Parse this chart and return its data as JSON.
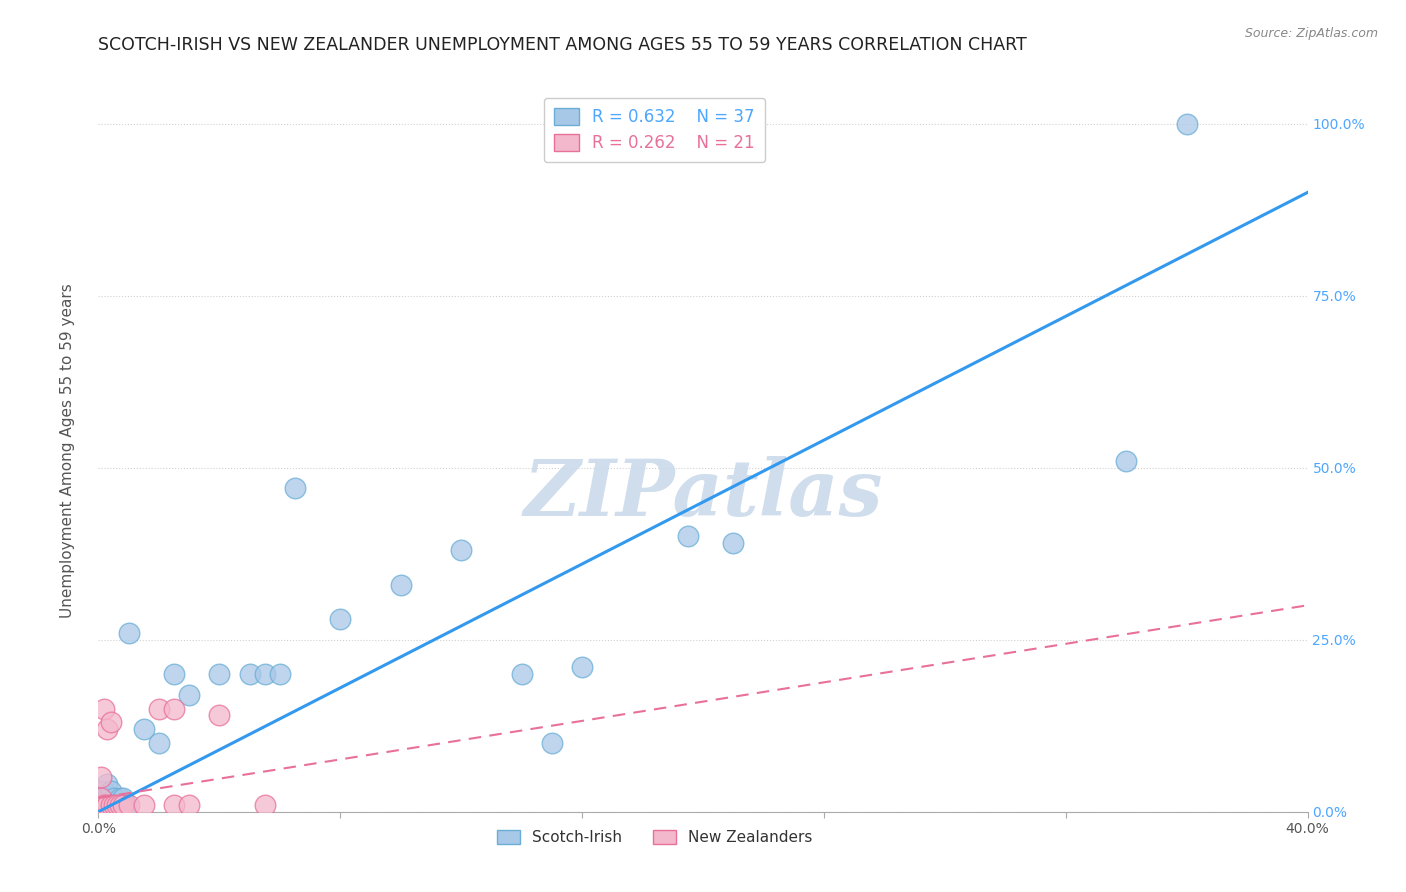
{
  "title": "SCOTCH-IRISH VS NEW ZEALANDER UNEMPLOYMENT AMONG AGES 55 TO 59 YEARS CORRELATION CHART",
  "source": "Source: ZipAtlas.com",
  "ylabel_label": "Unemployment Among Ages 55 to 59 years",
  "xlim": [
    0.0,
    0.4
  ],
  "ylim": [
    0.0,
    1.05
  ],
  "x_ticks": [
    0.0,
    0.08,
    0.16,
    0.24,
    0.32,
    0.4
  ],
  "x_tick_labels": [
    "0.0%",
    "",
    "",
    "",
    "",
    "40.0%"
  ],
  "y_ticks": [
    0.0,
    0.25,
    0.5,
    0.75,
    1.0
  ],
  "y_tick_labels": [
    "0.0%",
    "25.0%",
    "50.0%",
    "75.0%",
    "100.0%"
  ],
  "scotch_irish_color": "#a8c8e8",
  "scotch_irish_edge": "#6aaed6",
  "new_zealand_color": "#f4b8cc",
  "new_zealand_edge": "#e8709a",
  "blue_line_color": "#3399ee",
  "pink_line_color": "#e8709a",
  "watermark_color": "#c8d8ea",
  "legend_blue_R": "R = 0.632",
  "legend_blue_N": "N = 37",
  "legend_pink_R": "R = 0.262",
  "legend_pink_N": "N = 21",
  "scotch_irish_x": [
    0.001,
    0.001,
    0.001,
    0.002,
    0.002,
    0.002,
    0.003,
    0.003,
    0.003,
    0.004,
    0.004,
    0.005,
    0.005,
    0.006,
    0.007,
    0.008,
    0.009,
    0.01,
    0.015,
    0.02,
    0.025,
    0.03,
    0.04,
    0.05,
    0.055,
    0.06,
    0.065,
    0.08,
    0.1,
    0.12,
    0.14,
    0.15,
    0.16,
    0.195,
    0.21,
    0.34,
    0.36
  ],
  "scotch_irish_y": [
    0.01,
    0.02,
    0.03,
    0.01,
    0.02,
    0.03,
    0.01,
    0.02,
    0.04,
    0.01,
    0.03,
    0.01,
    0.02,
    0.01,
    0.02,
    0.02,
    0.01,
    0.26,
    0.12,
    0.1,
    0.2,
    0.17,
    0.2,
    0.2,
    0.2,
    0.2,
    0.47,
    0.28,
    0.33,
    0.38,
    0.2,
    0.1,
    0.21,
    0.4,
    0.39,
    0.51,
    1.0
  ],
  "new_zealand_x": [
    0.001,
    0.001,
    0.001,
    0.002,
    0.002,
    0.003,
    0.003,
    0.004,
    0.004,
    0.005,
    0.006,
    0.007,
    0.008,
    0.01,
    0.015,
    0.02,
    0.025,
    0.025,
    0.03,
    0.04,
    0.055
  ],
  "new_zealand_y": [
    0.01,
    0.02,
    0.05,
    0.01,
    0.15,
    0.01,
    0.12,
    0.01,
    0.13,
    0.01,
    0.01,
    0.01,
    0.01,
    0.01,
    0.01,
    0.15,
    0.15,
    0.01,
    0.01,
    0.14,
    0.01
  ],
  "blue_line_x": [
    0.0,
    0.4
  ],
  "blue_line_y": [
    0.0,
    0.9
  ],
  "pink_line_x": [
    0.0,
    0.4
  ],
  "pink_line_y": [
    0.02,
    0.3
  ],
  "grid_color": "#cccccc",
  "background_color": "#ffffff",
  "right_tick_color": "#4da6ff",
  "title_fontsize": 12.5,
  "axis_label_fontsize": 11,
  "tick_fontsize": 10
}
